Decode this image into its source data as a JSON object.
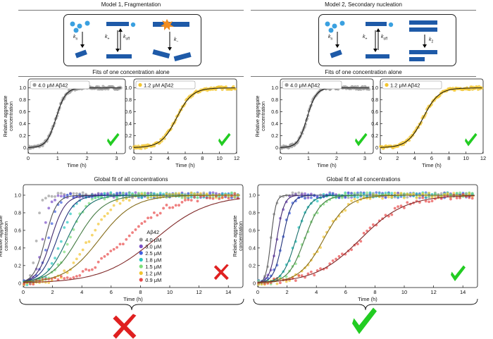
{
  "model1": {
    "title": "Model 1, Fragmentation",
    "schema_labels": [
      "k",
      "n",
      "k",
      "+",
      "k",
      "off",
      "k",
      "−"
    ],
    "alone_title": "Fits of one concentration alone",
    "global_title": "Global fit of all concentrations"
  },
  "model2": {
    "title": "Model 2, Secondary nucleation",
    "schema_labels": [
      "k",
      "n",
      "k",
      "+",
      "k",
      "off",
      "k",
      "2"
    ],
    "alone_title": "Fits of one concentration alone",
    "global_title": "Global fit of all concentrations"
  },
  "colors": {
    "c40": "#9a9a9a",
    "c30": "#7a4fc8",
    "c25": "#3f5fe0",
    "c18": "#28c8c0",
    "c15": "#7de07a",
    "c12": "#f2c530",
    "c09": "#e84a4a",
    "check": "#22cc22",
    "cross": "#e02020",
    "fibril": "#1e5aa8",
    "mono": "#3aa0e0"
  },
  "chart_data": [
    {
      "type": "scatter",
      "panel": "model1-single-4.0",
      "legend": "4.0 μM Aβ42",
      "xlabel": "Time (h)",
      "ylabel": "Relative aggregate concentration",
      "xlim": [
        0,
        3.3
      ],
      "ylim": [
        -0.1,
        1.15
      ],
      "xticks": [
        "0",
        "1",
        "2",
        "3"
      ],
      "yticks": [
        "0",
        "0.2",
        "0.4",
        "0.6",
        "0.8",
        "1.0"
      ],
      "series": [
        {
          "t_half": 0.95,
          "rate": 6.2,
          "color": "#9a9a9a"
        }
      ],
      "verdict": "check"
    },
    {
      "type": "scatter",
      "panel": "model1-single-1.2",
      "legend": "1.2 μM Aβ42",
      "xlabel": "Time (h)",
      "ylabel": "",
      "xlim": [
        0,
        12
      ],
      "ylim": [
        -0.1,
        1.15
      ],
      "xticks": [
        "0",
        "2",
        "4",
        "6",
        "8",
        "10",
        "12"
      ],
      "yticks": [
        "0",
        "0.2",
        "0.4",
        "0.6",
        "0.8",
        "1.0"
      ],
      "series": [
        {
          "t_half": 5.0,
          "rate": 1.1,
          "color": "#f2c530"
        }
      ],
      "verdict": "check"
    },
    {
      "type": "scatter",
      "panel": "model2-single-4.0",
      "legend": "4.0 μM Aβ42",
      "xlabel": "Time (h)",
      "ylabel": "Relative aggregate concentration",
      "xlim": [
        0,
        3.3
      ],
      "ylim": [
        -0.1,
        1.15
      ],
      "xticks": [
        "0",
        "1",
        "2",
        "3"
      ],
      "yticks": [
        "0",
        "0.2",
        "0.4",
        "0.6",
        "0.8",
        "1.0"
      ],
      "series": [
        {
          "t_half": 0.95,
          "rate": 6.2,
          "color": "#9a9a9a"
        }
      ],
      "verdict": "check"
    },
    {
      "type": "scatter",
      "panel": "model2-single-1.2",
      "legend": "1.2 μM Aβ42",
      "xlabel": "Time (h)",
      "ylabel": "",
      "xlim": [
        0,
        12
      ],
      "ylim": [
        -0.1,
        1.15
      ],
      "xticks": [
        "0",
        "2",
        "4",
        "6",
        "8",
        "10",
        "12"
      ],
      "yticks": [
        "0",
        "0.2",
        "0.4",
        "0.6",
        "0.8",
        "1.0"
      ],
      "series": [
        {
          "t_half": 5.0,
          "rate": 1.1,
          "color": "#f2c530"
        }
      ],
      "verdict": "check"
    },
    {
      "type": "scatter",
      "panel": "model1-global",
      "legend_title": "Aβ42",
      "xlabel": "Time (h)",
      "ylabel": "Relative aggregate concentration",
      "xlim": [
        0,
        15
      ],
      "ylim": [
        -0.05,
        1.12
      ],
      "xticks": [
        "0",
        "2",
        "4",
        "6",
        "8",
        "10",
        "12",
        "14"
      ],
      "yticks": [
        "0",
        "0.2",
        "0.4",
        "0.6",
        "0.8",
        "1.0"
      ],
      "series": [
        {
          "name": "4.0 μM",
          "color": "#9a9a9a",
          "data_half": 0.9,
          "data_rate": 6.0,
          "fit_half": 1.5,
          "fit_rate": 2.6
        },
        {
          "name": "3.0 μM",
          "color": "#7a4fc8",
          "data_half": 1.3,
          "data_rate": 4.0,
          "fit_half": 1.9,
          "fit_rate": 2.1
        },
        {
          "name": "2.5 μM",
          "color": "#3f5fe0",
          "data_half": 1.7,
          "data_rate": 3.2,
          "fit_half": 2.3,
          "fit_rate": 1.8
        },
        {
          "name": "1.8 μM",
          "color": "#28c8c0",
          "data_half": 2.6,
          "data_rate": 2.2,
          "fit_half": 3.0,
          "fit_rate": 1.4
        },
        {
          "name": "1.5 μM",
          "color": "#7de07a",
          "data_half": 3.2,
          "data_rate": 1.8,
          "fit_half": 3.7,
          "fit_rate": 1.1
        },
        {
          "name": "1.2 μM",
          "color": "#f2c530",
          "data_half": 4.5,
          "data_rate": 1.2,
          "fit_half": 5.2,
          "fit_rate": 0.85
        },
        {
          "name": "0.9 μM",
          "color": "#e84a4a",
          "data_half": 7.0,
          "data_rate": 0.65,
          "fit_half": 9.0,
          "fit_rate": 0.55
        }
      ],
      "verdict": "cross"
    },
    {
      "type": "scatter",
      "panel": "model2-global",
      "xlabel": "Time (h)",
      "ylabel": "Relative aggregate concentration",
      "xlim": [
        0,
        15
      ],
      "ylim": [
        -0.05,
        1.12
      ],
      "xticks": [
        "0",
        "2",
        "4",
        "6",
        "8",
        "10",
        "12",
        "14"
      ],
      "yticks": [
        "0",
        "0.2",
        "0.4",
        "0.6",
        "0.8",
        "1.0"
      ],
      "series": [
        {
          "name": "4.0 μM",
          "color": "#9a9a9a",
          "data_half": 0.9,
          "data_rate": 6.0,
          "fit_half": 0.9,
          "fit_rate": 6.0
        },
        {
          "name": "3.0 μM",
          "color": "#7a4fc8",
          "data_half": 1.3,
          "data_rate": 4.0,
          "fit_half": 1.3,
          "fit_rate": 4.0
        },
        {
          "name": "2.5 μM",
          "color": "#3f5fe0",
          "data_half": 1.7,
          "data_rate": 3.2,
          "fit_half": 1.7,
          "fit_rate": 3.2
        },
        {
          "name": "1.8 μM",
          "color": "#28c8c0",
          "data_half": 2.6,
          "data_rate": 2.2,
          "fit_half": 2.6,
          "fit_rate": 2.2
        },
        {
          "name": "1.5 μM",
          "color": "#7de07a",
          "data_half": 3.2,
          "data_rate": 1.8,
          "fit_half": 3.2,
          "fit_rate": 1.8
        },
        {
          "name": "1.2 μM",
          "color": "#f2c530",
          "data_half": 4.5,
          "data_rate": 1.2,
          "fit_half": 4.5,
          "fit_rate": 1.2
        },
        {
          "name": "0.9 μM",
          "color": "#e84a4a",
          "data_half": 7.0,
          "data_rate": 0.65,
          "fit_half": 7.0,
          "fit_rate": 0.65
        }
      ],
      "verdict": "check"
    }
  ],
  "bottom_verdicts": {
    "left": "cross",
    "right": "check"
  }
}
